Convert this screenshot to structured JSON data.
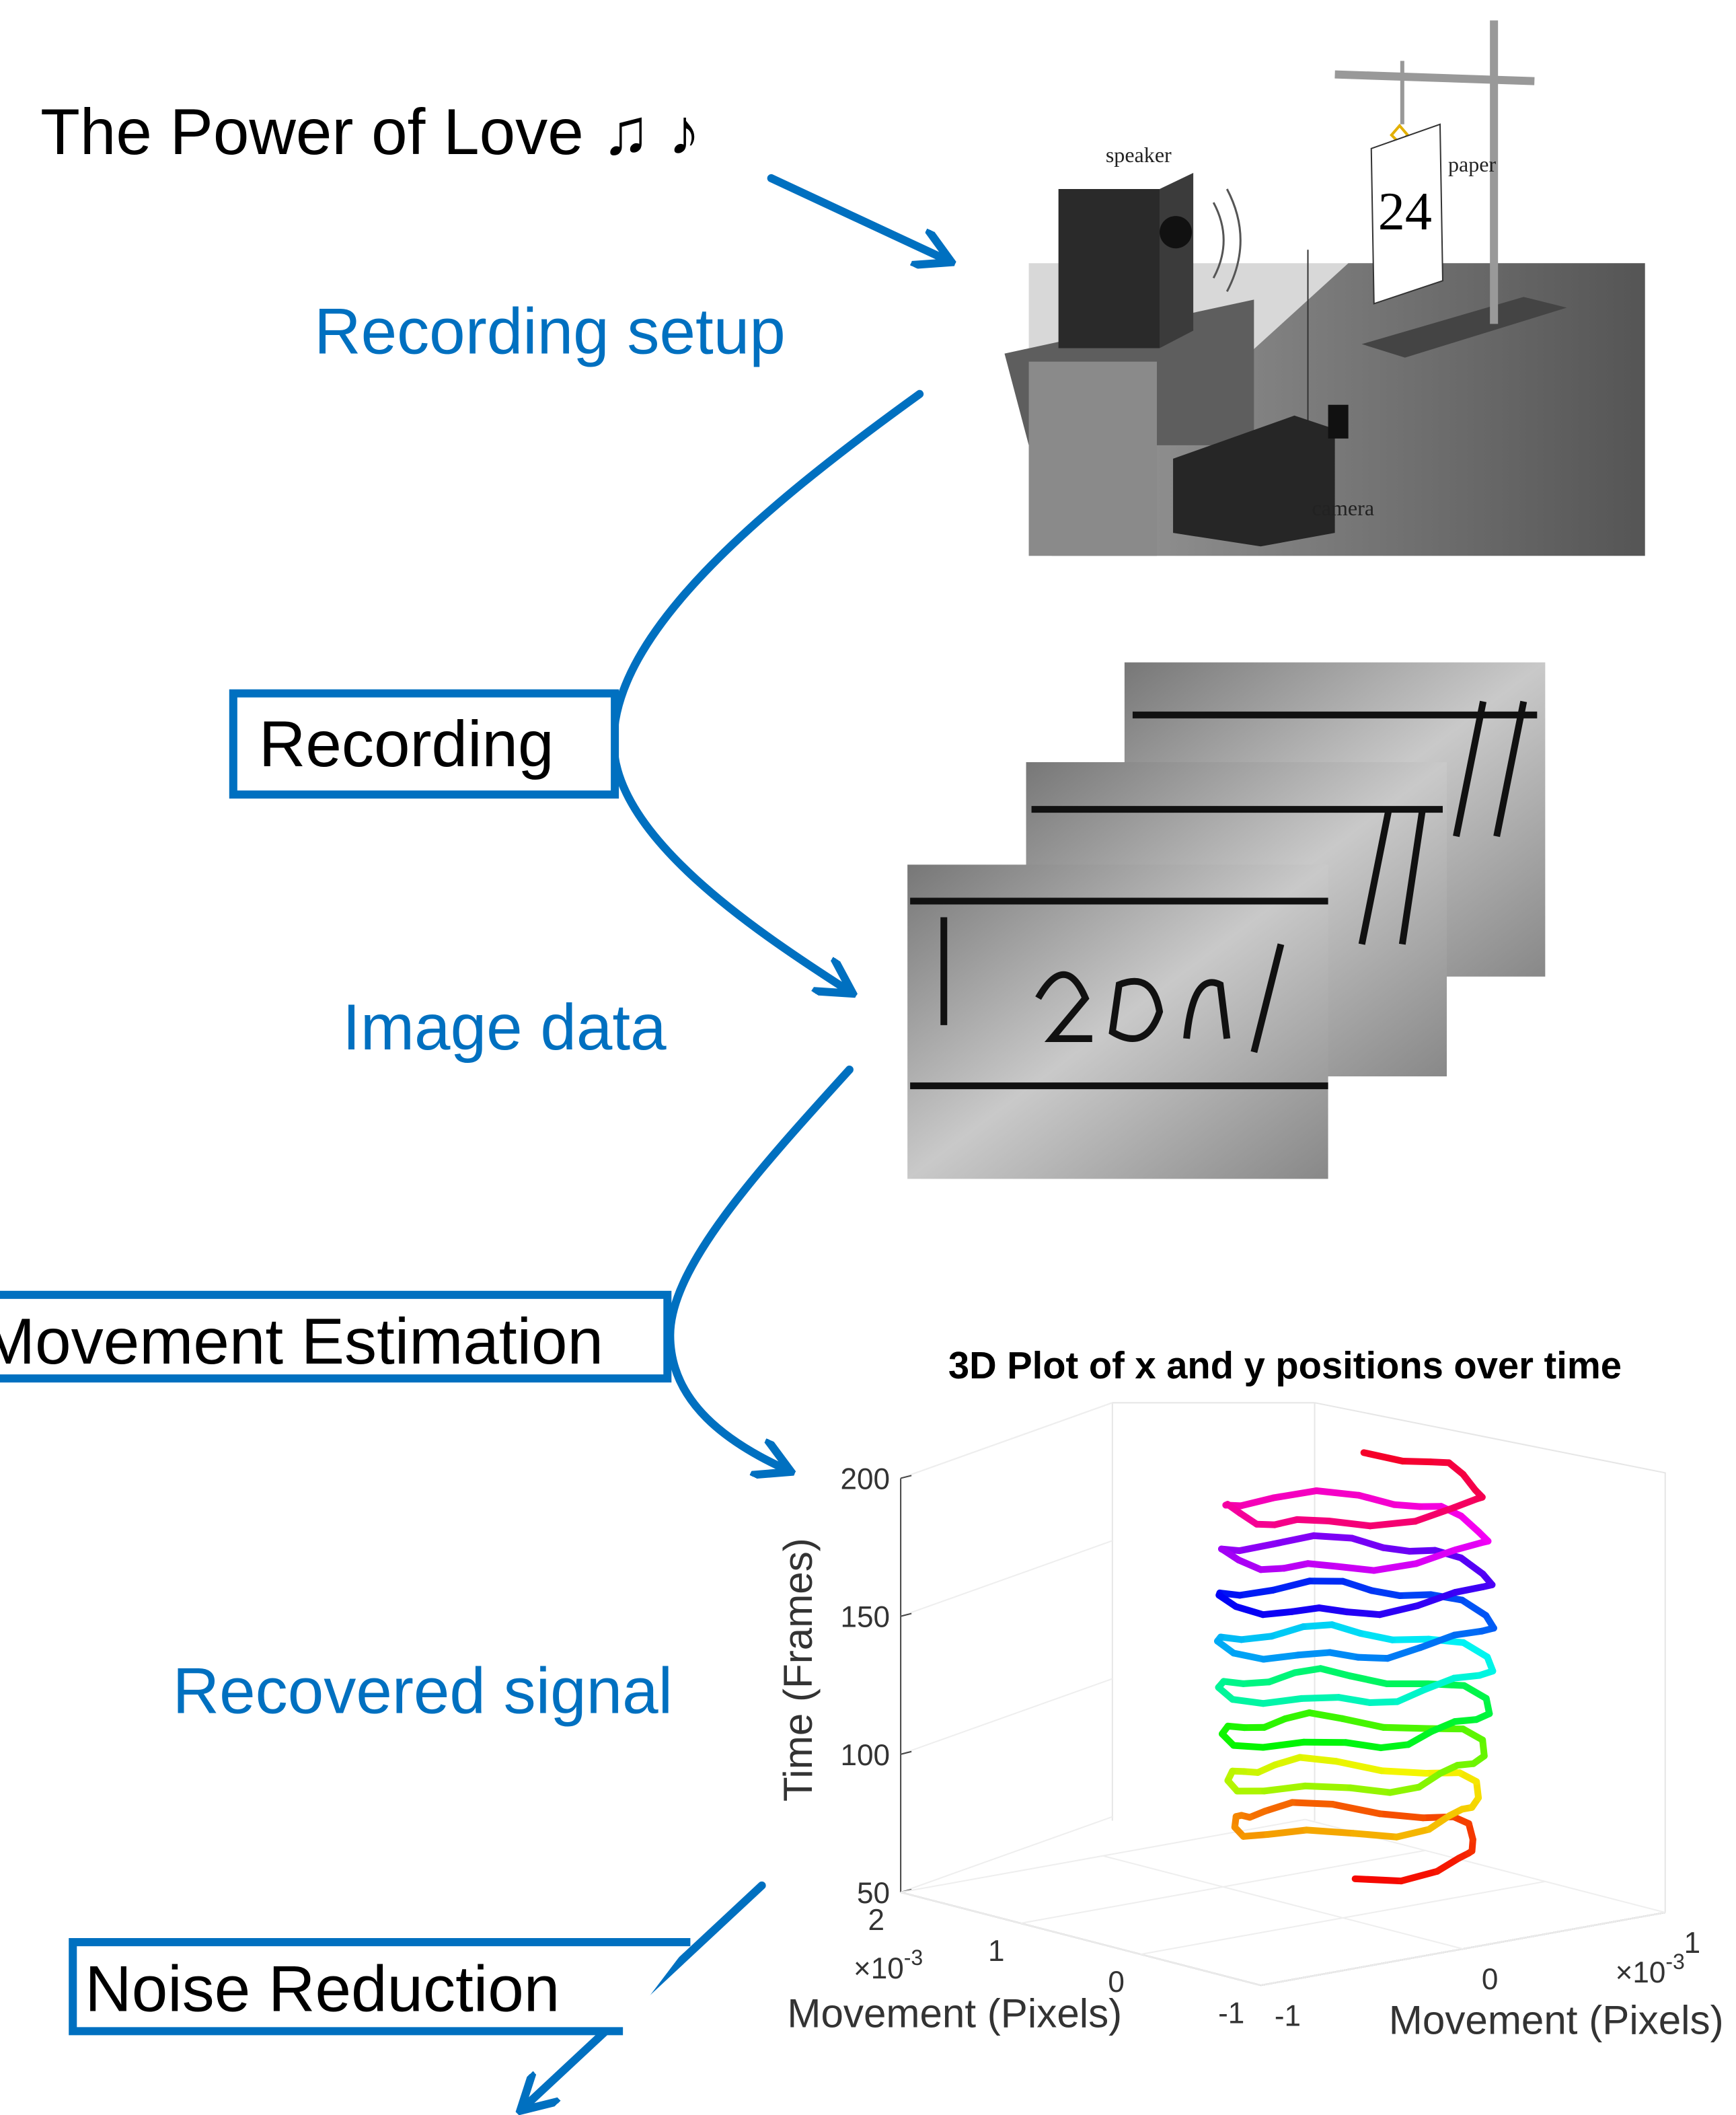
{
  "title": "The Power of Love ♫ ♪",
  "steps": [
    {
      "label": "Recording setup"
    },
    {
      "label": "Recording"
    },
    {
      "label": "Image data"
    },
    {
      "label": "Movement Estimation"
    },
    {
      "label": "Recovered signal"
    },
    {
      "label": "Noise Reduction"
    }
  ],
  "setup": {
    "speaker": "speaker",
    "paper": "paper",
    "paper_number": "24",
    "camera": "camera"
  },
  "plot": {
    "title": "3D Plot of x and y positions over time",
    "z_label": "Time (Frames)",
    "z_ticks": [
      50,
      100,
      150,
      200
    ],
    "x_label": "Movement (Pixels)",
    "x_ticks": [
      2,
      1,
      0,
      -1
    ],
    "x_multiplier": {
      "base": "×10",
      "exponent": "-3"
    },
    "y_label": "Movement (Pixels)",
    "y_ticks": [
      -1,
      0,
      1
    ],
    "y_multiplier": {
      "base": "×10",
      "exponent": "-3"
    }
  }
}
